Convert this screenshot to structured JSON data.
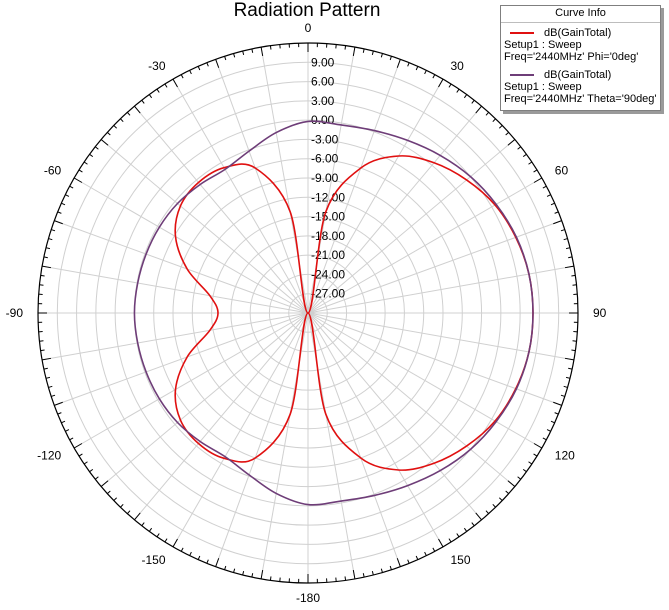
{
  "chart_data": {
    "type": "polar-line",
    "title": "Radiation Pattern",
    "angle_ticks": [
      "0",
      "30",
      "60",
      "90",
      "120",
      "150",
      "-180",
      "-150",
      "-120",
      "-90",
      "-60",
      "-30"
    ],
    "angle_tick_values": [
      0,
      30,
      60,
      90,
      120,
      150,
      180,
      -150,
      -120,
      -90,
      -60,
      -30
    ],
    "radial_ticks": [
      "9.00",
      "6.00",
      "3.00",
      "0.00",
      "-3.00",
      "-6.00",
      "-9.00",
      "-12.00",
      "-15.00",
      "-18.00",
      "-21.00",
      "-24.00",
      "-27.00"
    ],
    "r_range_db": [
      -30,
      12
    ],
    "grid": true,
    "legend_position": "top-right",
    "legend_title": "Curve Info",
    "series": [
      {
        "name": "dB(GainTotal)",
        "setup": "Setup1 : Sweep",
        "params": "Freq='2440MHz' Phi='0deg'",
        "color": "#e01010",
        "theta_deg": [
          0,
          10,
          20,
          30,
          40,
          50,
          60,
          70,
          80,
          90,
          100,
          110,
          120,
          130,
          140,
          150,
          160,
          170,
          180,
          190,
          200,
          210,
          220,
          230,
          240,
          250,
          260,
          270,
          280,
          290,
          300,
          310,
          320,
          330,
          340,
          350
        ],
        "gain_db": [
          -30,
          -14,
          -6,
          -1.8,
          0.5,
          2.2,
          3.6,
          4.4,
          4.9,
          5.0,
          4.9,
          4.4,
          3.6,
          2.2,
          0.5,
          -1.8,
          -6,
          -14,
          -30,
          -14,
          -6,
          -3.9,
          -3.5,
          -4.1,
          -6.2,
          -10,
          -14.5,
          -16,
          -14.5,
          -10,
          -6.2,
          -4.1,
          -3.5,
          -3.9,
          -6,
          -14
        ]
      },
      {
        "name": "dB(GainTotal)",
        "setup": "Setup1 : Sweep",
        "params": "Freq='2440MHz' Theta='90deg'",
        "color": "#6e3d78",
        "theta_deg": [
          0,
          10,
          20,
          30,
          40,
          50,
          60,
          70,
          80,
          90,
          100,
          110,
          120,
          130,
          140,
          150,
          160,
          170,
          180,
          190,
          200,
          210,
          220,
          230,
          240,
          250,
          260,
          270,
          280,
          290,
          300,
          310,
          320,
          330,
          340,
          350
        ],
        "gain_db": [
          -0.2,
          -0.3,
          0.2,
          1.0,
          2.0,
          3.0,
          3.8,
          4.5,
          4.9,
          5.0,
          4.9,
          4.5,
          3.8,
          3.0,
          2.0,
          1.0,
          0.2,
          -0.3,
          -0.2,
          -1.5,
          -3.2,
          -4.2,
          -3.9,
          -3.5,
          -3.3,
          -3.2,
          -3.1,
          -3.0,
          -3.1,
          -3.2,
          -3.3,
          -3.5,
          -3.9,
          -4.2,
          -3.2,
          -1.5
        ]
      }
    ]
  }
}
